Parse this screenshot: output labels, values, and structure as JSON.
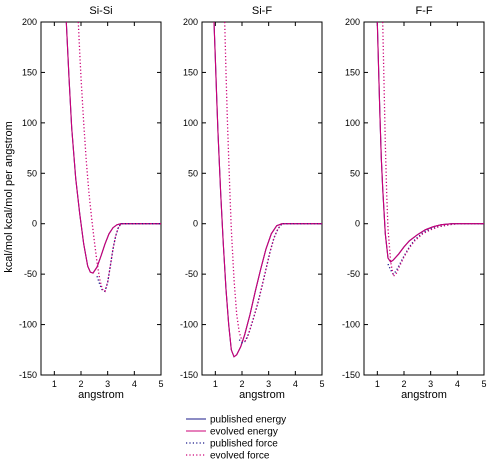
{
  "chart_data": {
    "type": "line",
    "ylabel": "kcal/mol   kcal/mol per angstrom",
    "xlabel": "angstrom",
    "xlim": [
      0.5,
      5
    ],
    "ylim": [
      -150,
      200
    ],
    "xticks": [
      1,
      2,
      3,
      4,
      5
    ],
    "yticks": [
      -150,
      -100,
      -50,
      0,
      50,
      100,
      150,
      200
    ],
    "legend": {
      "placement": "bottom-center",
      "entries": [
        {
          "label": "published energy",
          "color": "#1a1a8a",
          "style": "solid"
        },
        {
          "label": "evolved energy",
          "color": "#cc0077",
          "style": "solid"
        },
        {
          "label": "published force",
          "color": "#1a1a8a",
          "style": "dotted"
        },
        {
          "label": "evolved force",
          "color": "#cc0077",
          "style": "dotted"
        }
      ]
    },
    "panels": [
      {
        "title": "Si-Si",
        "series": [
          {
            "name": "published energy",
            "color": "#1a1a8a",
            "style": "solid",
            "x": [
              1.45,
              1.55,
              1.65,
              1.8,
              1.95,
              2.1,
              2.25,
              2.35,
              2.45,
              2.6,
              2.75,
              2.9,
              3.05,
              3.2,
              3.35,
              3.5,
              3.7,
              4.0,
              5.0
            ],
            "y": [
              200,
              145,
              95,
              45,
              10,
              -20,
              -42,
              -48,
              -49,
              -43,
              -32,
              -20,
              -10,
              -4,
              -1,
              0,
              0,
              0,
              0
            ]
          },
          {
            "name": "evolved energy",
            "color": "#cc0077",
            "style": "solid",
            "x": [
              1.45,
              1.55,
              1.65,
              1.8,
              1.95,
              2.1,
              2.25,
              2.35,
              2.45,
              2.6,
              2.75,
              2.9,
              3.05,
              3.2,
              3.35,
              3.5,
              3.7,
              4.0,
              5.0
            ],
            "y": [
              200,
              145,
              95,
              45,
              10,
              -20,
              -42,
              -48,
              -49,
              -43,
              -32,
              -20,
              -10,
              -4,
              -1,
              0,
              0,
              0,
              0
            ]
          },
          {
            "name": "published force",
            "color": "#1a1a8a",
            "style": "dotted",
            "x": [
              2.6,
              2.7,
              2.8,
              2.9,
              3.0,
              3.1,
              3.2,
              3.3,
              3.4,
              3.5,
              3.7,
              4.0,
              5.0
            ],
            "y": [
              -52,
              -60,
              -66,
              -67,
              -58,
              -42,
              -25,
              -12,
              -4,
              0,
              0,
              0,
              0
            ]
          },
          {
            "name": "evolved force",
            "color": "#cc0077",
            "style": "dotted",
            "x": [
              1.9,
              1.95,
              2.0,
              2.1,
              2.2,
              2.3,
              2.4,
              2.5,
              2.6,
              2.7,
              2.8,
              2.9,
              3.0,
              3.1,
              3.2,
              3.3,
              3.4,
              3.5,
              3.7,
              4.0,
              5.0
            ],
            "y": [
              200,
              170,
              145,
              100,
              62,
              30,
              5,
              -17,
              -38,
              -55,
              -65,
              -67,
              -58,
              -42,
              -25,
              -12,
              -4,
              0,
              0,
              0,
              0
            ]
          }
        ]
      },
      {
        "title": "Si-F",
        "series": [
          {
            "name": "published energy",
            "color": "#1a1a8a",
            "style": "solid",
            "x": [
              0.95,
              1.0,
              1.05,
              1.1,
              1.2,
              1.3,
              1.4,
              1.5,
              1.6,
              1.7,
              1.8,
              1.95,
              2.1,
              2.3,
              2.5,
              2.7,
              2.9,
              3.1,
              3.3,
              3.5,
              4.0,
              5.0
            ],
            "y": [
              200,
              165,
              125,
              90,
              30,
              -20,
              -65,
              -100,
              -125,
              -132,
              -130,
              -122,
              -110,
              -90,
              -67,
              -45,
              -25,
              -10,
              -2,
              0,
              0,
              0
            ]
          },
          {
            "name": "evolved energy",
            "color": "#cc0077",
            "style": "solid",
            "x": [
              0.95,
              1.0,
              1.05,
              1.1,
              1.2,
              1.3,
              1.4,
              1.5,
              1.6,
              1.7,
              1.8,
              1.95,
              2.1,
              2.3,
              2.5,
              2.7,
              2.9,
              3.1,
              3.3,
              3.5,
              4.0,
              5.0
            ],
            "y": [
              200,
              165,
              125,
              90,
              30,
              -20,
              -65,
              -100,
              -125,
              -132,
              -130,
              -122,
              -110,
              -90,
              -67,
              -45,
              -25,
              -10,
              -2,
              0,
              0,
              0
            ]
          },
          {
            "name": "published force",
            "color": "#1a1a8a",
            "style": "dotted",
            "x": [
              1.9,
              2.0,
              2.1,
              2.2,
              2.3,
              2.45,
              2.6,
              2.75,
              2.9,
              3.05,
              3.2,
              3.35,
              3.5,
              4.0,
              5.0
            ],
            "y": [
              -115,
              -118,
              -117,
              -112,
              -105,
              -92,
              -78,
              -62,
              -45,
              -28,
              -14,
              -5,
              0,
              0,
              0
            ]
          },
          {
            "name": "evolved force",
            "color": "#cc0077",
            "style": "dotted",
            "x": [
              1.35,
              1.4,
              1.45,
              1.5,
              1.55,
              1.6,
              1.7,
              1.8,
              1.9,
              2.0,
              2.1,
              2.2,
              2.3,
              2.45,
              2.6,
              2.75,
              2.9,
              3.05,
              3.2,
              3.35,
              3.5,
              4.0,
              5.0
            ],
            "y": [
              200,
              150,
              105,
              65,
              28,
              -5,
              -55,
              -90,
              -108,
              -116,
              -117,
              -113,
              -105,
              -92,
              -78,
              -62,
              -45,
              -28,
              -14,
              -5,
              0,
              0,
              0
            ]
          }
        ]
      },
      {
        "title": "F-F",
        "series": [
          {
            "name": "published energy",
            "color": "#1a1a8a",
            "style": "solid",
            "x": [
              1.0,
              1.05,
              1.1,
              1.15,
              1.2,
              1.3,
              1.4,
              1.5,
              1.6,
              1.8,
              2.0,
              2.2,
              2.5,
              2.8,
              3.1,
              3.4,
              3.8,
              4.2,
              5.0
            ],
            "y": [
              200,
              150,
              105,
              65,
              35,
              -10,
              -34,
              -38,
              -36,
              -30,
              -23,
              -17,
              -11,
              -6,
              -3,
              -1,
              0,
              0,
              0
            ]
          },
          {
            "name": "evolved energy",
            "color": "#cc0077",
            "style": "solid",
            "x": [
              1.0,
              1.05,
              1.1,
              1.15,
              1.2,
              1.3,
              1.4,
              1.5,
              1.6,
              1.8,
              2.0,
              2.2,
              2.5,
              2.8,
              3.1,
              3.4,
              3.8,
              4.2,
              5.0
            ],
            "y": [
              200,
              150,
              105,
              65,
              35,
              -10,
              -34,
              -38,
              -36,
              -30,
              -23,
              -17,
              -11,
              -6,
              -3,
              -1,
              0,
              0,
              0
            ]
          },
          {
            "name": "published force",
            "color": "#1a1a8a",
            "style": "dotted",
            "x": [
              1.4,
              1.5,
              1.6,
              1.7,
              1.8,
              2.0,
              2.2,
              2.4,
              2.7,
              3.0,
              3.3,
              3.7,
              4.0,
              4.3,
              5.0
            ],
            "y": [
              -40,
              -46,
              -50,
              -47,
              -42,
              -32,
              -23,
              -16,
              -9,
              -5,
              -3,
              -1,
              0,
              0,
              0
            ]
          },
          {
            "name": "evolved force",
            "color": "#cc0077",
            "style": "dotted",
            "x": [
              1.2,
              1.25,
              1.3,
              1.35,
              1.4,
              1.5,
              1.6,
              1.7,
              1.8,
              2.0,
              2.2,
              2.4,
              2.7,
              3.0,
              3.3,
              3.7,
              4.0,
              4.3,
              5.0
            ],
            "y": [
              200,
              140,
              80,
              30,
              -5,
              -38,
              -52,
              -50,
              -44,
              -33,
              -24,
              -17,
              -10,
              -6,
              -3,
              -1,
              0,
              0,
              0
            ]
          }
        ]
      }
    ]
  }
}
